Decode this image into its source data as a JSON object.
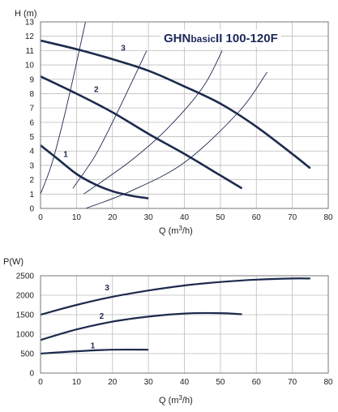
{
  "chart_data": [
    {
      "type": "line",
      "title_main": "GHN",
      "title_sub": "basic",
      "title_rest": "II 100-120F",
      "xlabel": "Q (m3/h)",
      "ylabel": "H (m)",
      "xlim": [
        0,
        80
      ],
      "ylim": [
        0,
        13
      ],
      "x_ticks": [
        "0",
        "10",
        "20",
        "30",
        "40",
        "50",
        "60",
        "70",
        "80"
      ],
      "y_ticks": [
        "0",
        "1",
        "2",
        "3",
        "4",
        "5",
        "6",
        "7",
        "8",
        "9",
        "10",
        "11",
        "12",
        "13"
      ],
      "grid": true,
      "series": [
        {
          "name": "1",
          "x": [
            0,
            5,
            10,
            15,
            20,
            25,
            30
          ],
          "y": [
            4.4,
            3.4,
            2.4,
            1.7,
            1.2,
            0.9,
            0.7
          ]
        },
        {
          "name": "2",
          "x": [
            0,
            10,
            20,
            30,
            40,
            50,
            56
          ],
          "y": [
            9.2,
            8.0,
            6.7,
            5.2,
            3.8,
            2.3,
            1.4
          ]
        },
        {
          "name": "3",
          "x": [
            0,
            10,
            20,
            30,
            40,
            50,
            60,
            70,
            75
          ],
          "y": [
            11.7,
            11.1,
            10.4,
            9.6,
            8.5,
            7.3,
            5.7,
            3.8,
            2.8
          ]
        }
      ],
      "system_curves": [
        {
          "x": [
            0,
            3,
            6,
            9,
            12.5
          ],
          "y": [
            1.0,
            3.0,
            5.8,
            9.0,
            13.0
          ]
        },
        {
          "x": [
            9,
            15,
            20,
            25,
            29.5
          ],
          "y": [
            1.4,
            3.6,
            6.0,
            8.6,
            11.0
          ]
        },
        {
          "x": [
            12,
            25,
            35,
            45,
            50.5
          ],
          "y": [
            1.0,
            3.3,
            5.5,
            8.4,
            11.0
          ]
        },
        {
          "x": [
            12.5,
            25,
            40,
            55,
            63
          ],
          "y": [
            0,
            1.2,
            3.2,
            6.7,
            9.5
          ]
        }
      ],
      "curve_labels": [
        {
          "text": "1",
          "x": 7,
          "y": 3.6
        },
        {
          "text": "2",
          "x": 15.5,
          "y": 8.1
        },
        {
          "text": "3",
          "x": 23,
          "y": 11.0
        }
      ]
    },
    {
      "type": "line",
      "xlabel": "Q (m3/h)",
      "ylabel": "P(W)",
      "xlim": [
        0,
        80
      ],
      "ylim": [
        0,
        2500
      ],
      "x_ticks": [
        "0",
        "10",
        "20",
        "30",
        "40",
        "50",
        "60",
        "70",
        "80"
      ],
      "y_ticks": [
        "0",
        "500",
        "1000",
        "1500",
        "2000",
        "2500"
      ],
      "grid": true,
      "series": [
        {
          "name": "1",
          "x": [
            0,
            10,
            20,
            30
          ],
          "y": [
            500,
            560,
            600,
            600
          ]
        },
        {
          "name": "2",
          "x": [
            0,
            10,
            20,
            30,
            40,
            50,
            56
          ],
          "y": [
            850,
            1120,
            1320,
            1450,
            1530,
            1540,
            1510
          ]
        },
        {
          "name": "3",
          "x": [
            0,
            10,
            20,
            30,
            40,
            50,
            60,
            70,
            75
          ],
          "y": [
            1500,
            1750,
            1960,
            2120,
            2250,
            2340,
            2400,
            2430,
            2430
          ]
        }
      ],
      "curve_labels": [
        {
          "text": "1",
          "x": 14.5,
          "y": 640
        },
        {
          "text": "2",
          "x": 17,
          "y": 1400
        },
        {
          "text": "3",
          "x": 18.5,
          "y": 2120
        }
      ]
    }
  ]
}
